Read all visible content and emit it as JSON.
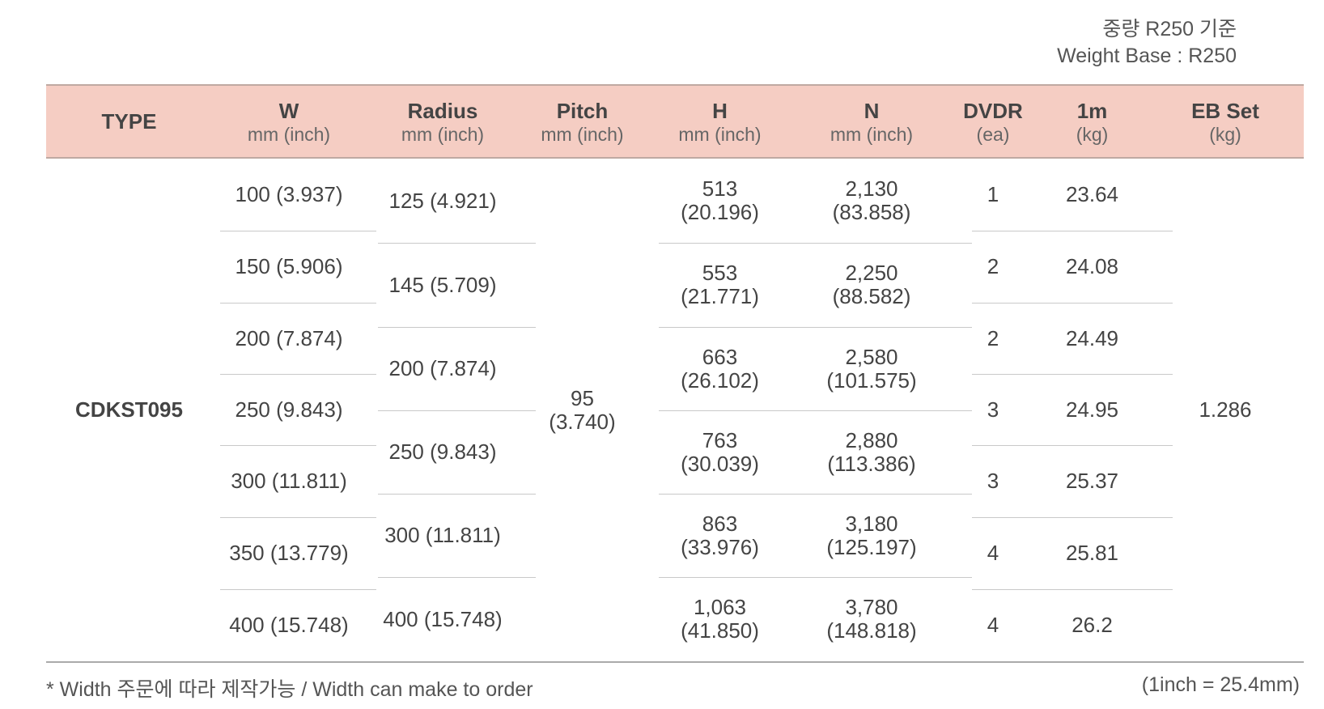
{
  "note_ko": "중량 R250 기준",
  "note_en": "Weight Base : R250",
  "headers": [
    {
      "title": "TYPE",
      "unit": ""
    },
    {
      "title": "W",
      "unit": "mm (inch)"
    },
    {
      "title": "Radius",
      "unit": "mm (inch)"
    },
    {
      "title": "Pitch",
      "unit": "mm (inch)"
    },
    {
      "title": "H",
      "unit": "mm (inch)"
    },
    {
      "title": "N",
      "unit": "mm (inch)"
    },
    {
      "title": "DVDR",
      "unit": "(ea)"
    },
    {
      "title": "1m",
      "unit": "(kg)"
    },
    {
      "title": "EB Set",
      "unit": "(kg)"
    }
  ],
  "type": "CDKST095",
  "pitch": "95\n(3.740)",
  "eb_set": "1.286",
  "w": [
    "100 (3.937)",
    "150 (5.906)",
    "200 (7.874)",
    "250 (9.843)",
    "300 (11.811)",
    "350 (13.779)",
    "400 (15.748)"
  ],
  "dvdr": [
    "1",
    "2",
    "2",
    "3",
    "3",
    "4",
    "4"
  ],
  "kg": [
    "23.64",
    "24.08",
    "24.49",
    "24.95",
    "25.37",
    "25.81",
    "26.2"
  ],
  "radius": [
    "125 (4.921)",
    "145 (5.709)",
    "200 (7.874)",
    "250 (9.843)",
    "300 (11.811)",
    "400 (15.748)"
  ],
  "h": [
    "513\n(20.196)",
    "553\n(21.771)",
    "663\n(26.102)",
    "763\n(30.039)",
    "863\n(33.976)",
    "1,063\n(41.850)"
  ],
  "n": [
    "2,130\n(83.858)",
    "2,250\n(88.582)",
    "2,580\n(101.575)",
    "2,880\n(113.386)",
    "3,180\n(125.197)",
    "3,780\n(148.818)"
  ],
  "footnote": "* Width 주문에 따라 제작가능 / Width can make to order",
  "unit_note": "(1inch = 25.4mm)"
}
